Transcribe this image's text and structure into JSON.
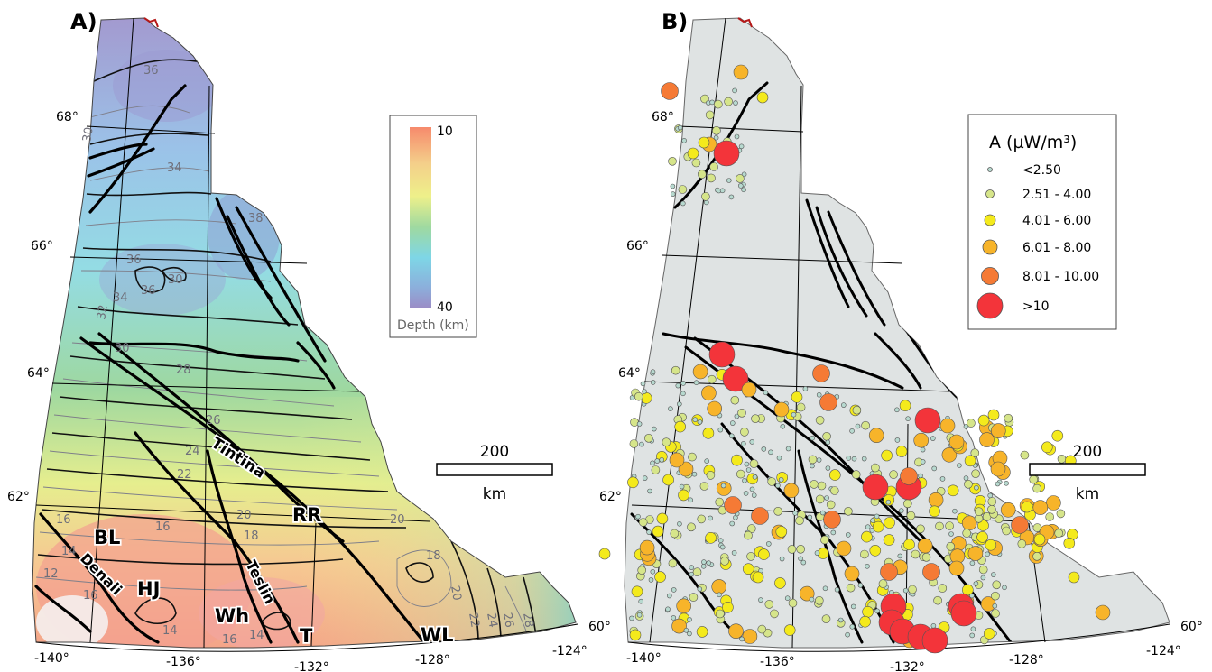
{
  "panel_a": {
    "label": "A)",
    "colorbar": {
      "max_label": "10",
      "min_label": "40",
      "title": "Depth (km)",
      "colors": [
        "#f68a6c",
        "#f4cf8a",
        "#eef08a",
        "#9fd9a0",
        "#7ed6e6",
        "#8b9bd0",
        "#9b8cc6"
      ]
    },
    "lat_labels": [
      "68°",
      "66°",
      "64°",
      "62°",
      "60°"
    ],
    "lon_labels": [
      "-140°",
      "-136°",
      "-132°",
      "-128°",
      "-124°"
    ],
    "contour_labels": [
      "36",
      "34",
      "30",
      "38",
      "36",
      "30",
      "36",
      "34",
      "32",
      "30",
      "28",
      "26",
      "24",
      "22",
      "20",
      "18",
      "16",
      "16",
      "14",
      "12",
      "16",
      "16",
      "14",
      "14",
      "20",
      "18",
      "20",
      "22",
      "24",
      "26",
      "28"
    ],
    "fault_labels": {
      "tintina": "Tintina",
      "rr": "RR",
      "bl": "BL",
      "denali": "Denali",
      "hj": "HJ",
      "teslin": "Teslin",
      "wh": "Wh",
      "t": "T",
      "wl": "WL"
    },
    "scale": {
      "value": "200",
      "unit": "km"
    }
  },
  "panel_b": {
    "label": "B)",
    "lat_labels": [
      "68°",
      "66°",
      "64°",
      "62°",
      "60°"
    ],
    "lon_labels": [
      "-140°",
      "-136°",
      "-132°",
      "-128°",
      "-124°"
    ],
    "legend": {
      "title": "A (µW/m³)",
      "items": [
        {
          "label": "<2.50",
          "color": "#b7d9cf"
        },
        {
          "label": "2.51 - 4.00",
          "color": "#d6e58a"
        },
        {
          "label": "4.01 - 6.00",
          "color": "#f4ea1c"
        },
        {
          "label": "6.01 - 8.00",
          "color": "#f7b42a"
        },
        {
          "label": "8.01 - 10.00",
          "color": "#f57a35"
        },
        {
          "label": ">10",
          "color": "#f3343a"
        }
      ]
    },
    "scale": {
      "value": "200",
      "unit": "km"
    }
  }
}
